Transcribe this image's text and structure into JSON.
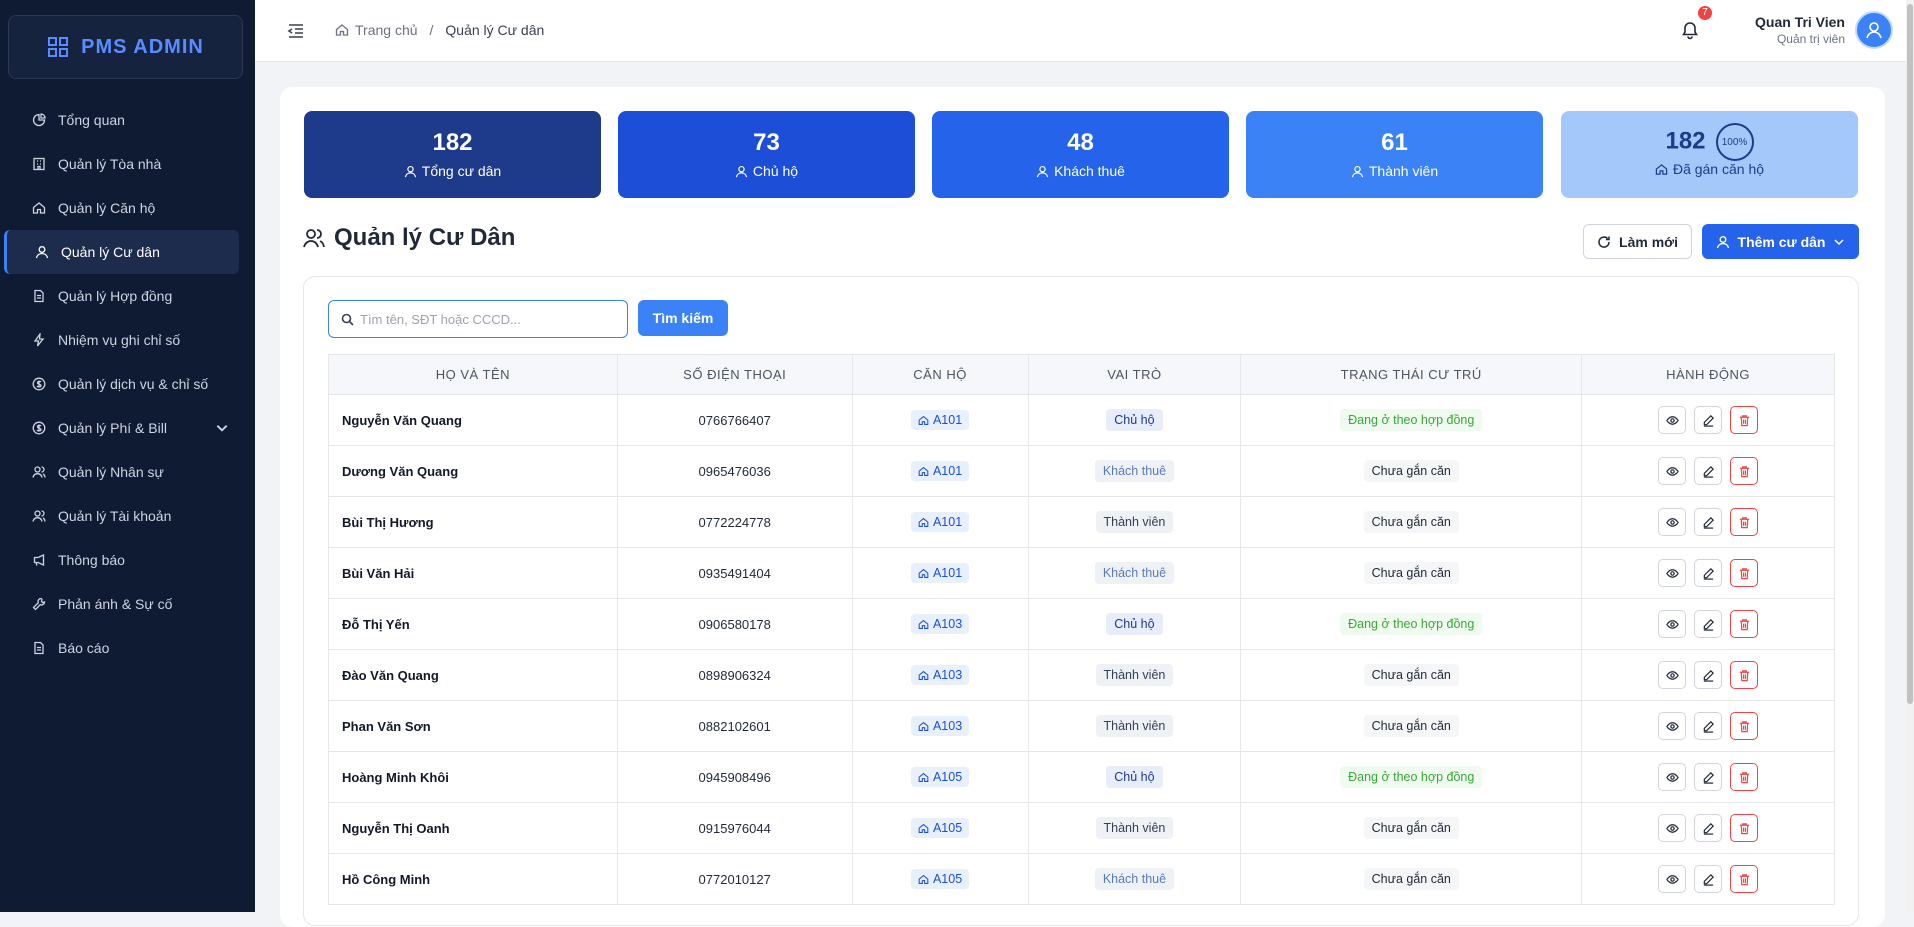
{
  "brand": {
    "name": "PMS ADMIN"
  },
  "sidebar": {
    "items": [
      {
        "label": "Tổng quan",
        "icon": "pie-chart-icon"
      },
      {
        "label": "Quản lý Tòa nhà",
        "icon": "building-icon"
      },
      {
        "label": "Quản lý Căn hộ",
        "icon": "home-icon"
      },
      {
        "label": "Quản lý Cư dân",
        "icon": "user-icon",
        "active": true
      },
      {
        "label": "Quản lý Hợp đồng",
        "icon": "file-icon"
      },
      {
        "label": "Nhiệm vụ ghi chỉ số",
        "icon": "bolt-icon"
      },
      {
        "label": "Quản lý dịch vụ & chỉ số",
        "icon": "dollar-circle-icon"
      },
      {
        "label": "Quản lý Phí & Bill",
        "icon": "dollar-circle-icon",
        "expandable": true
      },
      {
        "label": "Quản lý Nhân sự",
        "icon": "users-icon"
      },
      {
        "label": "Quản lý Tài khoản",
        "icon": "users-icon"
      },
      {
        "label": "Thông báo",
        "icon": "megaphone-icon"
      },
      {
        "label": "Phản ánh & Sự cố",
        "icon": "wrench-icon"
      },
      {
        "label": "Báo cáo",
        "icon": "file-icon"
      }
    ]
  },
  "header": {
    "breadcrumb_home": "Trang chủ",
    "breadcrumb_sep": "/",
    "breadcrumb_current": "Quản lý Cư dân",
    "notification_count": "7",
    "user_name": "Quan Tri Vien",
    "user_role": "Quản trị viên"
  },
  "stats": [
    {
      "value": "182",
      "label": "Tổng cư dân",
      "color": "#1e3a8a"
    },
    {
      "value": "73",
      "label": "Chủ hộ",
      "color": "#1d4ed8"
    },
    {
      "value": "48",
      "label": "Khách thuê",
      "color": "#2563eb"
    },
    {
      "value": "61",
      "label": "Thành viên",
      "color": "#3b82f6"
    },
    {
      "value": "182",
      "label": "Đã gán căn hộ",
      "percent": "100%",
      "color": "#a5c8fb"
    }
  ],
  "page": {
    "title": "Quản lý Cư Dân",
    "refresh_label": "Làm mới",
    "add_label": "Thêm cư dân",
    "search_placeholder": "Tìm tên, SĐT hoặc CCCD...",
    "search_button": "Tìm kiếm"
  },
  "table": {
    "columns": [
      "Họ và tên",
      "Số điện thoại",
      "Căn hộ",
      "Vai trò",
      "Trạng thái cư trú",
      "Hành động"
    ],
    "rows": [
      {
        "name": "Nguyễn Văn Quang",
        "phone": "0766766407",
        "apt": "A101",
        "role": "Chủ hộ",
        "status": "Đang ở theo hợp đồng"
      },
      {
        "name": "Dương Văn Quang",
        "phone": "0965476036",
        "apt": "A101",
        "role": "Khách thuê",
        "status": "Chưa gắn căn"
      },
      {
        "name": "Bùi Thị Hương",
        "phone": "0772224778",
        "apt": "A101",
        "role": "Thành viên",
        "status": "Chưa gắn căn"
      },
      {
        "name": "Bùi Văn Hải",
        "phone": "0935491404",
        "apt": "A101",
        "role": "Khách thuê",
        "status": "Chưa gắn căn"
      },
      {
        "name": "Đỗ Thị Yến",
        "phone": "0906580178",
        "apt": "A103",
        "role": "Chủ hộ",
        "status": "Đang ở theo hợp đồng"
      },
      {
        "name": "Đào Văn Quang",
        "phone": "0898906324",
        "apt": "A103",
        "role": "Thành viên",
        "status": "Chưa gắn căn"
      },
      {
        "name": "Phan Văn Sơn",
        "phone": "0882102601",
        "apt": "A103",
        "role": "Thành viên",
        "status": "Chưa gắn căn"
      },
      {
        "name": "Hoàng Minh Khôi",
        "phone": "0945908496",
        "apt": "A105",
        "role": "Chủ hộ",
        "status": "Đang ở theo hợp đồng"
      },
      {
        "name": "Nguyễn Thị Oanh",
        "phone": "0915976044",
        "apt": "A105",
        "role": "Thành viên",
        "status": "Chưa gắn căn"
      },
      {
        "name": "Hồ Công Minh",
        "phone": "0772010127",
        "apt": "A105",
        "role": "Khách thuê",
        "status": "Chưa gắn căn"
      }
    ]
  }
}
